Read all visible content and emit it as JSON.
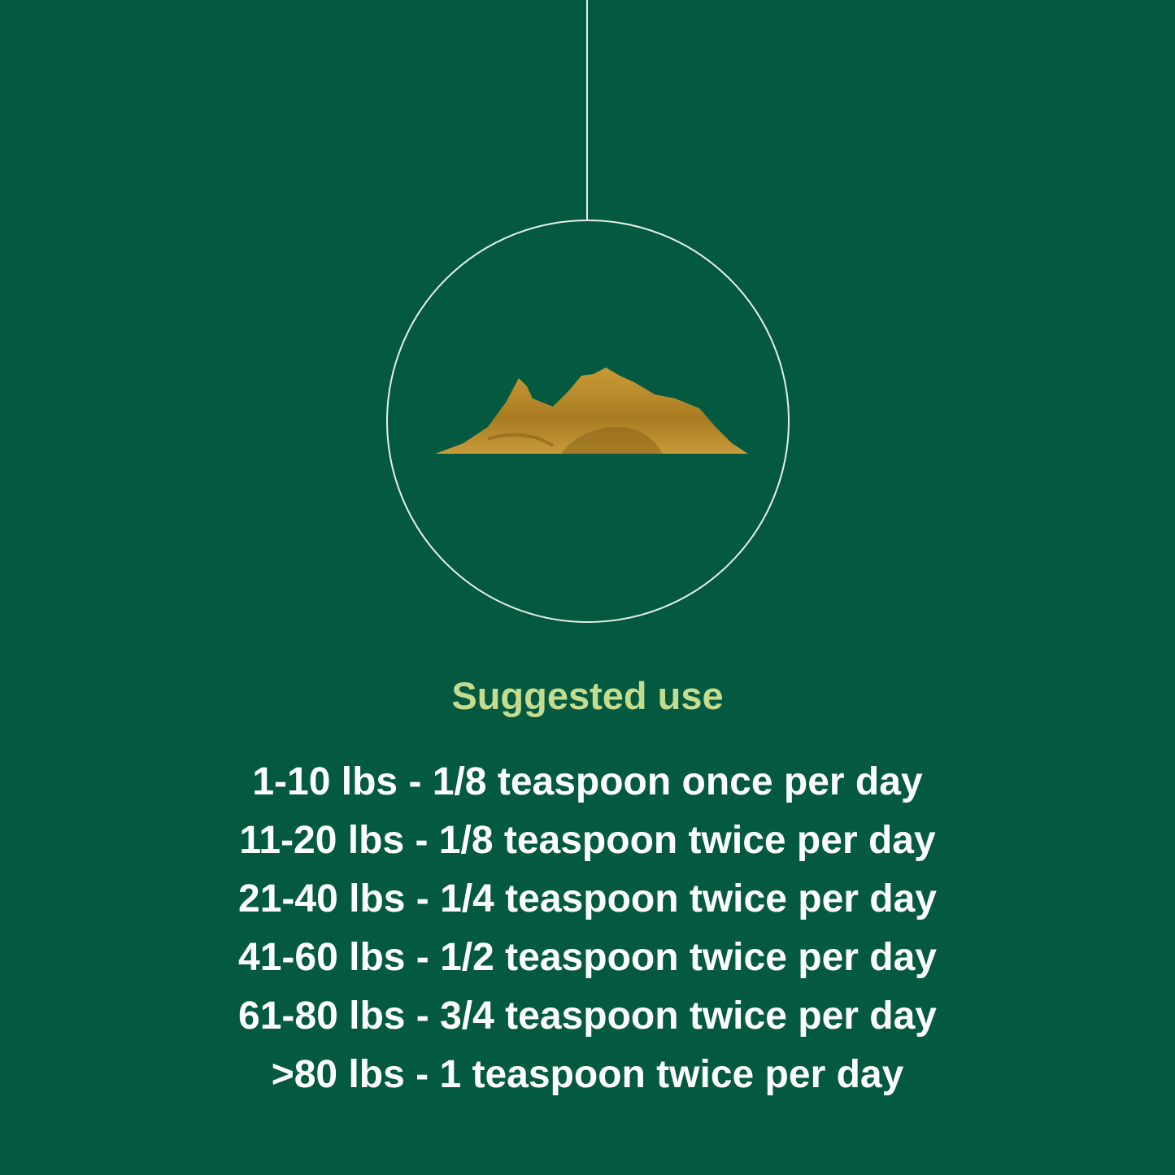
{
  "colors": {
    "background": "#035a40",
    "title": "#c5dc8f",
    "text": "#ffffff",
    "powder": "#b8892a"
  },
  "image": {
    "icon": "powder-pile"
  },
  "title": "Suggested use",
  "doses": [
    "1-10 lbs - 1/8 teaspoon once per day",
    "11-20 lbs - 1/8 teaspoon twice per day",
    "21-40 lbs - 1/4 teaspoon twice per day",
    "41-60 lbs - 1/2 teaspoon twice per day",
    "61-80 lbs - 3/4 teaspoon twice per day",
    ">80 lbs - 1 teaspoon twice per day"
  ]
}
